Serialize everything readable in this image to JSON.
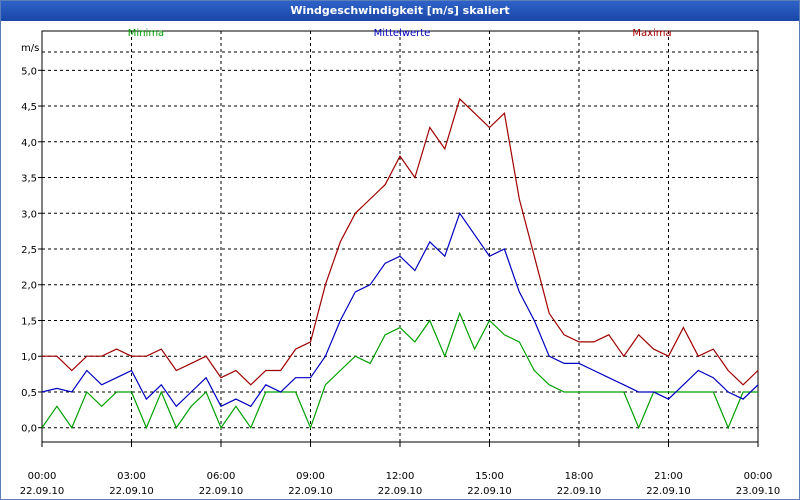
{
  "window": {
    "title": "Windgeschwindigkeit [m/s] skaliert"
  },
  "chart_data": {
    "type": "line",
    "title": "Windgeschwindigkeit [m/s] skaliert",
    "ylabel": "m/s",
    "xlabel": "",
    "ylim": [
      -0.2,
      5.55
    ],
    "xlim": [
      0,
      24
    ],
    "grid": true,
    "y_ticks": [
      0,
      0.5,
      1,
      1.5,
      2,
      2.5,
      3,
      3.5,
      4,
      4.5,
      5
    ],
    "y_tick_labels": [
      "0,0",
      "0,5",
      "1,0",
      "1,5",
      "2,0",
      "2,5",
      "3,0",
      "3,5",
      "4,0",
      "4,5",
      "5,0"
    ],
    "x_ticks": [
      0,
      3,
      6,
      9,
      12,
      15,
      18,
      21,
      24
    ],
    "x_tick_labels": [
      {
        "time": "00:00",
        "date": "22.09.10"
      },
      {
        "time": "03:00",
        "date": "22.09.10"
      },
      {
        "time": "06:00",
        "date": "22.09.10"
      },
      {
        "time": "09:00",
        "date": "22.09.10"
      },
      {
        "time": "12:00",
        "date": "22.09.10"
      },
      {
        "time": "15:00",
        "date": "22.09.10"
      },
      {
        "time": "18:00",
        "date": "22.09.10"
      },
      {
        "time": "21:00",
        "date": "22.09.10"
      },
      {
        "time": "00:00",
        "date": "23.09.10"
      }
    ],
    "series": [
      {
        "name": "Minima",
        "color": "#00a000",
        "x": [
          0,
          0.5,
          1,
          1.5,
          2,
          2.5,
          3,
          3.5,
          4,
          4.5,
          5,
          5.5,
          6,
          6.5,
          7,
          7.5,
          8,
          8.5,
          9,
          9.5,
          10,
          10.5,
          11,
          11.5,
          12,
          12.5,
          13,
          13.5,
          14,
          14.5,
          15,
          15.5,
          16,
          16.5,
          17,
          17.5,
          18,
          18.5,
          19,
          19.5,
          20,
          20.5,
          21,
          21.5,
          22,
          22.5,
          23,
          23.5,
          24
        ],
        "values": [
          0,
          0.3,
          0,
          0.5,
          0.3,
          0.5,
          0.5,
          0,
          0.5,
          0,
          0.3,
          0.5,
          0,
          0.3,
          0,
          0.5,
          0.5,
          0.5,
          0,
          0.6,
          0.8,
          1.0,
          0.9,
          1.3,
          1.4,
          1.2,
          1.5,
          1.0,
          1.6,
          1.1,
          1.5,
          1.3,
          1.2,
          0.8,
          0.6,
          0.5,
          0.5,
          0.5,
          0.5,
          0.5,
          0,
          0.5,
          0.5,
          0.5,
          0.5,
          0.5,
          0,
          0.5,
          0.5
        ]
      },
      {
        "name": "Mittelwerte",
        "color": "#0000c0",
        "x": [
          0,
          0.5,
          1,
          1.5,
          2,
          2.5,
          3,
          3.5,
          4,
          4.5,
          5,
          5.5,
          6,
          6.5,
          7,
          7.5,
          8,
          8.5,
          9,
          9.5,
          10,
          10.5,
          11,
          11.5,
          12,
          12.5,
          13,
          13.5,
          14,
          14.5,
          15,
          15.5,
          16,
          16.5,
          17,
          17.5,
          18,
          18.5,
          19,
          19.5,
          20,
          20.5,
          21,
          21.5,
          22,
          22.5,
          23,
          23.5,
          24
        ],
        "values": [
          0.5,
          0.55,
          0.5,
          0.8,
          0.6,
          0.7,
          0.8,
          0.4,
          0.6,
          0.3,
          0.5,
          0.7,
          0.3,
          0.4,
          0.3,
          0.6,
          0.5,
          0.7,
          0.7,
          1.0,
          1.5,
          1.9,
          2.0,
          2.3,
          2.4,
          2.2,
          2.6,
          2.4,
          3.0,
          2.7,
          2.4,
          2.5,
          1.9,
          1.5,
          1.0,
          0.9,
          0.9,
          0.8,
          0.7,
          0.6,
          0.5,
          0.5,
          0.4,
          0.6,
          0.8,
          0.7,
          0.5,
          0.4,
          0.6
        ]
      },
      {
        "name": "Maxima",
        "color": "#a00000",
        "x": [
          0,
          0.5,
          1,
          1.5,
          2,
          2.5,
          3,
          3.5,
          4,
          4.5,
          5,
          5.5,
          6,
          6.5,
          7,
          7.5,
          8,
          8.5,
          9,
          9.5,
          10,
          10.5,
          11,
          11.5,
          12,
          12.5,
          13,
          13.5,
          14,
          14.5,
          15,
          15.5,
          16,
          16.5,
          17,
          17.5,
          18,
          18.5,
          19,
          19.5,
          20,
          20.5,
          21,
          21.5,
          22,
          22.5,
          23,
          23.5,
          24
        ],
        "values": [
          1.0,
          1.0,
          0.8,
          1.0,
          1.0,
          1.1,
          1.0,
          1.0,
          1.1,
          0.8,
          0.9,
          1.0,
          0.7,
          0.8,
          0.6,
          0.8,
          0.8,
          1.1,
          1.2,
          2.0,
          2.6,
          3.0,
          3.2,
          3.4,
          3.8,
          3.5,
          4.2,
          3.9,
          4.6,
          4.4,
          4.2,
          4.4,
          3.2,
          2.4,
          1.6,
          1.3,
          1.2,
          1.2,
          1.3,
          1.0,
          1.3,
          1.1,
          1.0,
          1.4,
          1.0,
          1.1,
          0.8,
          0.6,
          0.8
        ]
      }
    ]
  }
}
